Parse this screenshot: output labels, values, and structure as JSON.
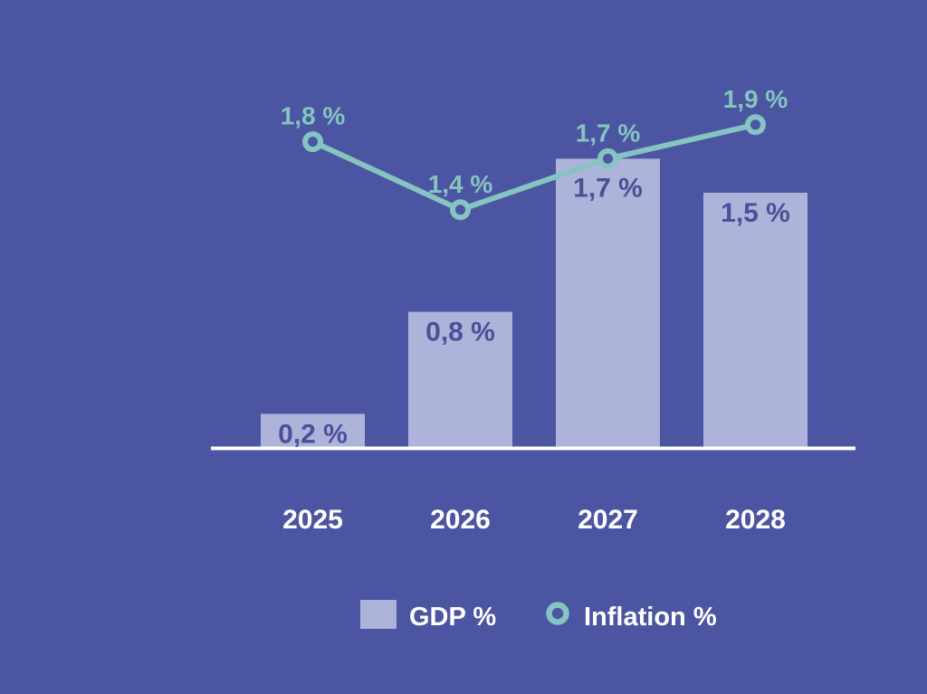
{
  "colors": {
    "background": "#4c55a1",
    "bar_fill": "#aeb3da",
    "bar_label": "#4b5098",
    "line": "#85c4c1",
    "axis": "#ffffff",
    "category_label": "#ffffff",
    "legend_text": "#ffffff"
  },
  "chart_data": {
    "type": "bar+line",
    "categories": [
      "2025",
      "2026",
      "2027",
      "2028"
    ],
    "series": [
      {
        "name": "GDP %",
        "type": "bar",
        "values": [
          0.2,
          0.8,
          1.7,
          1.5
        ],
        "labels": [
          "0,2 %",
          "0,8 %",
          "1,7 %",
          "1,5 %"
        ]
      },
      {
        "name": "Inflation %",
        "type": "line",
        "values": [
          1.8,
          1.4,
          1.7,
          1.9
        ],
        "labels": [
          "1,8 %",
          "1,4 %",
          "1,7 %",
          "1,9 %"
        ]
      }
    ],
    "ylim": [
      0,
      2.1
    ],
    "grid": false,
    "legend_position": "bottom",
    "title": "",
    "xlabel": "",
    "ylabel": ""
  }
}
